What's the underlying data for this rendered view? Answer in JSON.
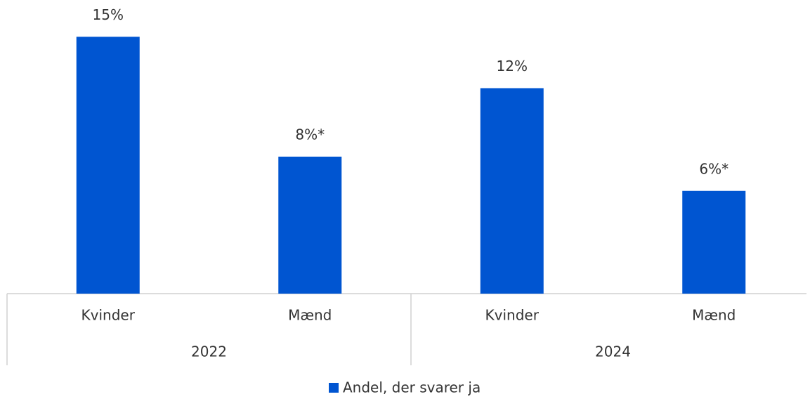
{
  "chart_data": {
    "type": "bar",
    "categories": [
      "Kvinder",
      "Mænd",
      "Kvinder",
      "Mænd"
    ],
    "groups": [
      "2022",
      "2024"
    ],
    "series": [
      {
        "name": "Andel, der svarer ja",
        "color": "#0055d1",
        "values": [
          15,
          8,
          12,
          6
        ],
        "value_labels": [
          "15%",
          "8%*",
          "12%",
          "6%*"
        ]
      }
    ],
    "ylim": [
      0,
      16
    ]
  }
}
